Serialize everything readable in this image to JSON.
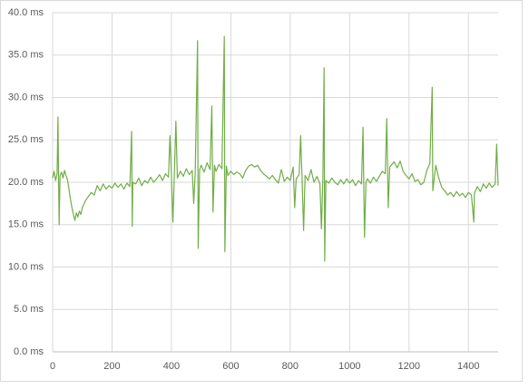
{
  "chart_data": {
    "type": "line",
    "color": "#70ad47",
    "grid": true,
    "xlim": [
      0,
      1500
    ],
    "xticks": [
      0,
      200,
      400,
      600,
      800,
      1000,
      1200,
      1400
    ],
    "ylim": [
      0,
      40
    ],
    "yticks": [
      {
        "value": 0,
        "label": "0.0 ms"
      },
      {
        "value": 5,
        "label": "5.0 ms"
      },
      {
        "value": 10,
        "label": "10.0 ms"
      },
      {
        "value": 15,
        "label": "15.0 ms"
      },
      {
        "value": 20,
        "label": "20.0 ms"
      },
      {
        "value": 25,
        "label": "25.0 ms"
      },
      {
        "value": 30,
        "label": "30.0 ms"
      },
      {
        "value": 35,
        "label": "35.0 ms"
      },
      {
        "value": 40,
        "label": "40.0 ms"
      }
    ],
    "x": [
      0,
      5,
      10,
      15,
      18,
      20,
      22,
      25,
      30,
      35,
      40,
      45,
      50,
      55,
      60,
      65,
      70,
      75,
      80,
      85,
      90,
      95,
      100,
      110,
      120,
      130,
      140,
      150,
      160,
      170,
      180,
      190,
      200,
      210,
      220,
      230,
      240,
      250,
      260,
      266,
      268,
      270,
      280,
      290,
      300,
      310,
      320,
      330,
      340,
      350,
      360,
      370,
      380,
      390,
      395,
      400,
      405,
      410,
      415,
      420,
      430,
      440,
      450,
      460,
      470,
      475,
      480,
      488,
      490,
      495,
      500,
      510,
      520,
      530,
      536,
      540,
      545,
      550,
      560,
      570,
      578,
      580,
      585,
      590,
      600,
      610,
      620,
      630,
      640,
      650,
      660,
      670,
      680,
      690,
      700,
      710,
      720,
      730,
      740,
      750,
      760,
      770,
      780,
      790,
      800,
      810,
      815,
      820,
      830,
      835,
      840,
      845,
      850,
      860,
      870,
      880,
      890,
      900,
      905,
      910,
      914,
      916,
      920,
      930,
      940,
      950,
      960,
      970,
      980,
      990,
      1000,
      1010,
      1020,
      1030,
      1040,
      1045,
      1050,
      1055,
      1060,
      1070,
      1080,
      1090,
      1100,
      1110,
      1120,
      1125,
      1130,
      1135,
      1140,
      1150,
      1160,
      1170,
      1180,
      1190,
      1200,
      1210,
      1220,
      1230,
      1240,
      1250,
      1260,
      1270,
      1278,
      1280,
      1290,
      1300,
      1310,
      1320,
      1330,
      1340,
      1350,
      1360,
      1370,
      1380,
      1390,
      1400,
      1410,
      1418,
      1420,
      1430,
      1440,
      1450,
      1460,
      1470,
      1480,
      1490,
      1495,
      1500
    ],
    "values": [
      20.5,
      21.3,
      20.2,
      21.0,
      27.7,
      20.4,
      15.0,
      20.8,
      21.2,
      20.5,
      21.4,
      20.8,
      20.3,
      19.2,
      18.0,
      17.0,
      16.2,
      15.5,
      16.4,
      15.9,
      16.6,
      16.2,
      17.0,
      17.8,
      18.3,
      18.8,
      18.5,
      19.6,
      19.0,
      19.8,
      19.2,
      19.6,
      19.3,
      19.9,
      19.4,
      19.8,
      19.2,
      19.9,
      19.5,
      26.0,
      14.8,
      20.0,
      19.8,
      20.5,
      19.6,
      20.2,
      19.9,
      20.6,
      20.0,
      20.4,
      20.9,
      20.2,
      21.0,
      20.6,
      25.5,
      20.8,
      15.3,
      21.2,
      27.2,
      20.5,
      21.3,
      20.7,
      21.6,
      20.9,
      21.4,
      17.5,
      21.0,
      36.7,
      12.2,
      21.5,
      22.0,
      21.2,
      22.3,
      21.5,
      29.0,
      16.5,
      22.0,
      21.3,
      22.1,
      21.6,
      37.2,
      11.8,
      21.9,
      20.8,
      21.3,
      20.9,
      21.2,
      21.0,
      20.5,
      21.4,
      21.9,
      22.1,
      21.8,
      22.0,
      21.4,
      21.0,
      20.7,
      20.4,
      20.8,
      20.3,
      19.9,
      21.5,
      20.1,
      20.6,
      20.2,
      21.8,
      17.0,
      20.4,
      20.9,
      25.5,
      20.3,
      14.3,
      20.8,
      20.2,
      21.5,
      20.0,
      20.7,
      19.8,
      14.5,
      20.5,
      33.5,
      10.7,
      20.2,
      19.9,
      20.5,
      20.0,
      19.7,
      20.3,
      19.8,
      20.4,
      19.9,
      20.3,
      19.6,
      20.2,
      19.8,
      26.5,
      13.5,
      20.0,
      20.4,
      19.9,
      20.6,
      20.1,
      20.7,
      21.3,
      21.0,
      27.5,
      17.0,
      21.8,
      22.0,
      22.4,
      21.7,
      22.5,
      21.3,
      20.8,
      20.4,
      21.0,
      20.1,
      20.3,
      19.7,
      20.0,
      21.4,
      22.2,
      31.2,
      19.0,
      22.0,
      20.5,
      19.4,
      19.0,
      18.5,
      18.8,
      18.3,
      18.9,
      18.4,
      18.7,
      18.2,
      18.8,
      18.5,
      15.3,
      18.7,
      19.5,
      18.9,
      19.8,
      19.3,
      19.9,
      19.4,
      19.8,
      24.5,
      19.6
    ]
  }
}
